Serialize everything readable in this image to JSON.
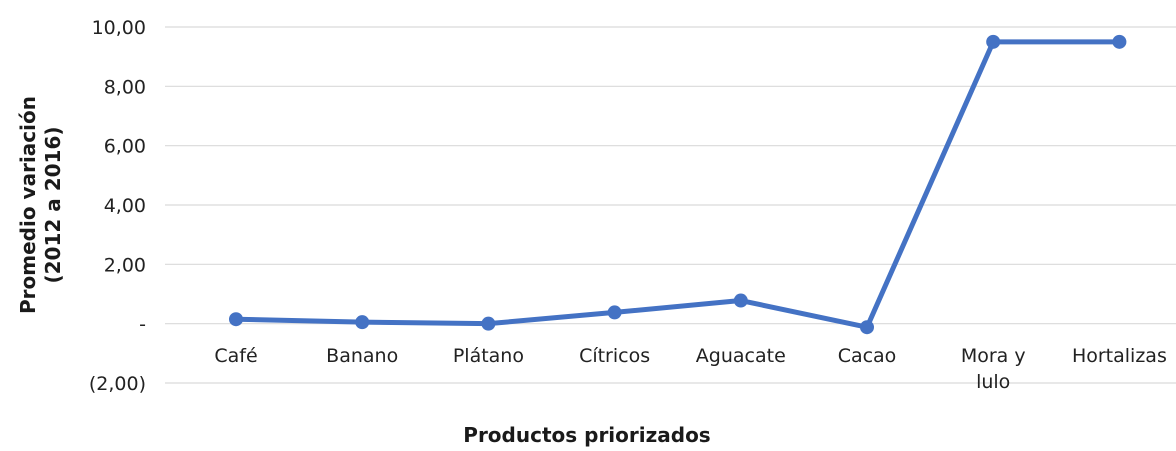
{
  "chart_data": {
    "type": "line",
    "categories": [
      "Café",
      "Banano",
      "Plátano",
      "Cítricos",
      "Aguacate",
      "Cacao",
      "Mora y lulo",
      "Hortalizas"
    ],
    "category_lines": [
      [
        "Café"
      ],
      [
        "Banano"
      ],
      [
        "Plátano"
      ],
      [
        "Cítricos"
      ],
      [
        "Aguacate"
      ],
      [
        "Cacao"
      ],
      [
        "Mora y",
        "lulo"
      ],
      [
        "Hortalizas"
      ]
    ],
    "series": [
      {
        "values": [
          0.15,
          0.05,
          0.0,
          0.38,
          0.78,
          -0.12,
          9.5,
          9.5
        ],
        "color": "#4472c4"
      }
    ],
    "xlabel": "Productos priorizados",
    "ylabel_lines": [
      "Promedio variación",
      "(2012 a 2016)"
    ],
    "ylim": [
      -2,
      10
    ],
    "yticks": [
      -2,
      0,
      2,
      4,
      6,
      8,
      10
    ],
    "ytick_labels": [
      "(2,00)",
      "-",
      "2,00",
      "4,00",
      "6,00",
      "8,00",
      "10,00"
    ],
    "grid": true,
    "legend": "none"
  }
}
